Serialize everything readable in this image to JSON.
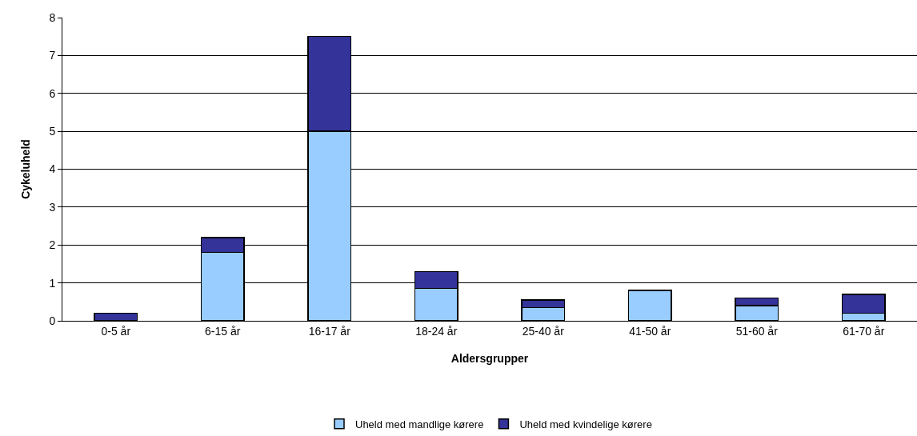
{
  "chart_data": {
    "type": "bar",
    "stacked": true,
    "xlabel": "Aldersgrupper",
    "ylabel": "Cykeluheld",
    "categories": [
      "0-5 år",
      "6-15 år",
      "16-17 år",
      "18-24 år",
      "25-40 år",
      "41-50 år",
      "51-60 år",
      "61-70 år"
    ],
    "series": [
      {
        "name": "Uheld med mandlige kørere",
        "color": "#99ccff",
        "values": [
          0,
          1.8,
          5,
          0.85,
          0.35,
          0.8,
          0.4,
          0.2
        ]
      },
      {
        "name": "Uheld med kvindelige kørere",
        "color": "#333399",
        "values": [
          0.2,
          0.4,
          2.5,
          0.45,
          0.2,
          null,
          0.2,
          0.5
        ]
      }
    ],
    "ylim": [
      0,
      8
    ],
    "yticks": [
      0,
      1,
      2,
      3,
      4,
      5,
      6,
      7,
      8
    ],
    "grid": "y",
    "legend": "bottom"
  }
}
